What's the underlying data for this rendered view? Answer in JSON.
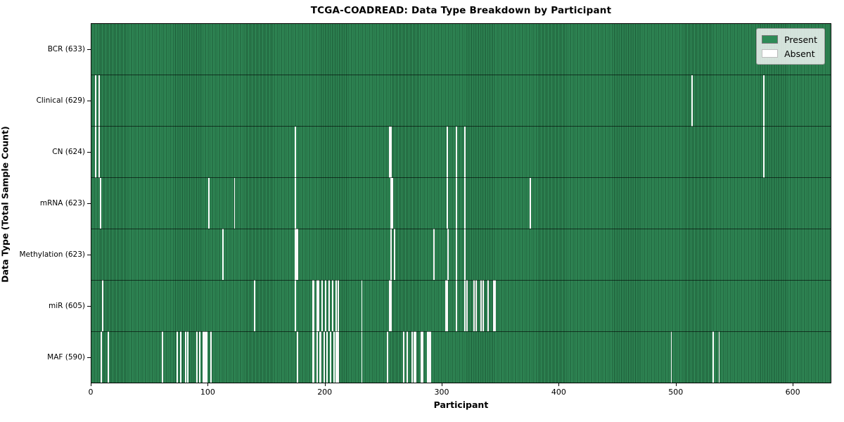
{
  "title": "TCGA-COADREAD: Data Type Breakdown by Participant",
  "chart_data": {
    "type": "heatmap",
    "title": "TCGA-COADREAD: Data Type Breakdown by Participant",
    "xlabel": "Participant",
    "ylabel": "Data Type (Total Sample Count)",
    "x_ticks": [
      0,
      100,
      200,
      300,
      400,
      500,
      600
    ],
    "xlim": [
      0,
      633
    ],
    "n_participants": 633,
    "grid": false,
    "legend_position": "upper-right",
    "legend": [
      {
        "label": "Present",
        "color": "#2e8b57"
      },
      {
        "label": "Absent",
        "color": "#ffffff"
      }
    ],
    "colors": {
      "present": "#2e8b57",
      "present_edge": "#1a5634",
      "absent": "#ffffff",
      "row_separator": "#000000"
    },
    "rows": [
      {
        "data_type": "BCR",
        "label": "BCR (633)",
        "present_count": 633,
        "absent_participants": []
      },
      {
        "data_type": "Clinical",
        "label": "Clinical (629)",
        "present_count": 629,
        "absent_participants": [
          3,
          6,
          514,
          575
        ]
      },
      {
        "data_type": "CN",
        "label": "CN (624)",
        "present_count": 624,
        "absent_participants": [
          3,
          6,
          174,
          255,
          256,
          304,
          312,
          319,
          575
        ]
      },
      {
        "data_type": "mRNA",
        "label": "mRNA (623)",
        "present_count": 623,
        "absent_participants": [
          7,
          100,
          122,
          174,
          256,
          257,
          304,
          312,
          319,
          375
        ]
      },
      {
        "data_type": "Methylation",
        "label": "Methylation (623)",
        "present_count": 623,
        "absent_participants": [
          112,
          174,
          175,
          176,
          256,
          259,
          293,
          305,
          312,
          319
        ]
      },
      {
        "data_type": "miR",
        "label": "miR (605)",
        "present_count": 605,
        "absent_participants": [
          9,
          139,
          174,
          189,
          190,
          193,
          194,
          197,
          200,
          203,
          206,
          209,
          211,
          231,
          255,
          256,
          303,
          304,
          312,
          319,
          321,
          327,
          329,
          333,
          335,
          339,
          344,
          345
        ]
      },
      {
        "data_type": "MAF",
        "label": "MAF (590)",
        "present_count": 590,
        "absent_participants": [
          8,
          14,
          60,
          73,
          76,
          80,
          82,
          90,
          92,
          95,
          96,
          97,
          98,
          102,
          176,
          189,
          190,
          193,
          195,
          196,
          199,
          201,
          204,
          207,
          209,
          210,
          211,
          231,
          253,
          267,
          270,
          274,
          276,
          277,
          282,
          283,
          287,
          288,
          289,
          290,
          496,
          532,
          537
        ]
      }
    ]
  }
}
